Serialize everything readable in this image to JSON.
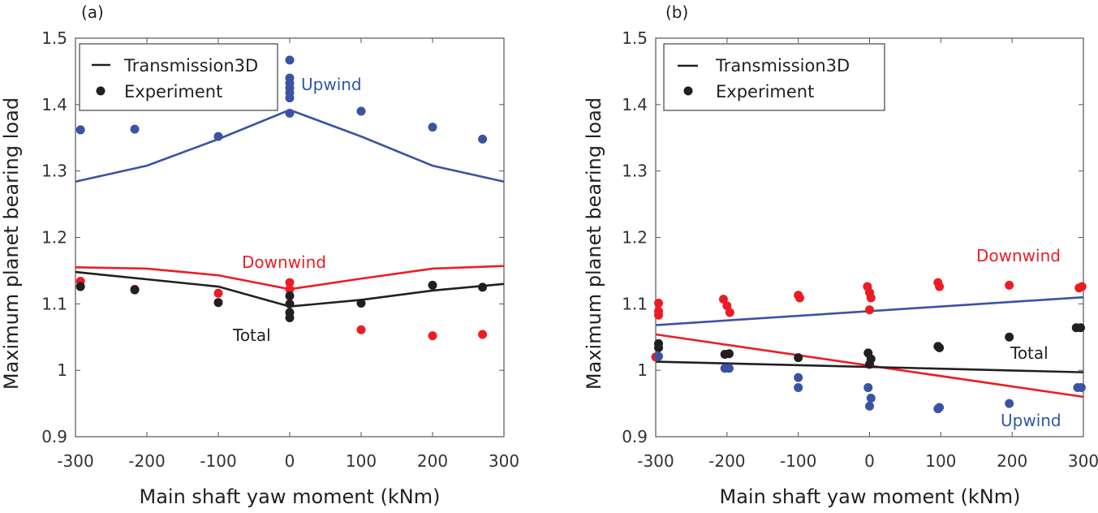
{
  "chart_data": [
    {
      "type": "line+scatter",
      "panel_label": "(a)",
      "xlabel": "Main shaft yaw moment (kNm)",
      "ylabel": "Maximum planet bearing load",
      "xlim": [
        -300,
        300
      ],
      "ylim": [
        0.9,
        1.5
      ],
      "xticks": [
        "-300",
        "-200",
        "-100",
        "0",
        "100",
        "200",
        "300"
      ],
      "yticks": [
        "0.9",
        "1",
        "1.1",
        "1.2",
        "1.3",
        "1.4",
        "1.5"
      ],
      "legend": {
        "position": "top-left",
        "entries": [
          "Transmission3D",
          "Experiment"
        ]
      },
      "annotations": [
        {
          "text": "Upwind",
          "color": "#2f56a6"
        },
        {
          "text": "Downwind",
          "color": "#ed1c24"
        },
        {
          "text": "Total",
          "color": "#231f20"
        }
      ],
      "series": [
        {
          "group": "Upwind",
          "kind": "line",
          "color": "#3a53a4",
          "x": [
            -300,
            -200,
            -100,
            0,
            100,
            200,
            300
          ],
          "y": [
            1.284,
            1.308,
            1.348,
            1.392,
            1.352,
            1.308,
            1.284
          ]
        },
        {
          "group": "Downwind",
          "kind": "line",
          "color": "#ed1c24",
          "x": [
            -300,
            -200,
            -100,
            0,
            100,
            200,
            300
          ],
          "y": [
            1.155,
            1.153,
            1.143,
            1.122,
            1.138,
            1.153,
            1.157
          ]
        },
        {
          "group": "Total",
          "kind": "line",
          "color": "#231f20",
          "x": [
            -300,
            -100,
            0,
            100,
            200,
            300
          ],
          "y": [
            1.148,
            1.126,
            1.096,
            1.106,
            1.12,
            1.13
          ]
        },
        {
          "group": "Upwind",
          "kind": "points",
          "color": "#3a53a4",
          "x": [
            -293,
            -217,
            -100,
            0,
            0,
            0,
            0,
            0,
            0,
            0,
            100,
            200,
            270
          ],
          "y": [
            1.362,
            1.363,
            1.352,
            1.467,
            1.44,
            1.432,
            1.425,
            1.418,
            1.41,
            1.387,
            1.39,
            1.366,
            1.348
          ]
        },
        {
          "group": "Downwind",
          "kind": "points",
          "color": "#ed1c24",
          "x": [
            -293,
            -217,
            -100,
            0,
            0,
            100,
            200,
            270
          ],
          "y": [
            1.134,
            1.122,
            1.116,
            1.132,
            1.122,
            1.061,
            1.052,
            1.054
          ]
        },
        {
          "group": "Total",
          "kind": "points",
          "color": "#231f20",
          "x": [
            -293,
            -217,
            -100,
            0,
            0,
            0,
            0,
            100,
            200,
            270
          ],
          "y": [
            1.126,
            1.121,
            1.102,
            1.112,
            1.1,
            1.087,
            1.079,
            1.101,
            1.128,
            1.125
          ]
        }
      ]
    },
    {
      "type": "line+scatter",
      "panel_label": "(b)",
      "xlabel": "Main shaft yaw moment (kNm)",
      "ylabel": "Maximum planet bearing load",
      "xlim": [
        -300,
        300
      ],
      "ylim": [
        0.9,
        1.5
      ],
      "xticks": [
        "-300",
        "-200",
        "-100",
        "0",
        "100",
        "200",
        "300"
      ],
      "yticks": [
        "0.9",
        "1",
        "1.1",
        "1.2",
        "1.3",
        "1.4",
        "1.5"
      ],
      "legend": {
        "position": "top-left",
        "entries": [
          "Transmission3D",
          "Experiment"
        ]
      },
      "annotations": [
        {
          "text": "Downwind",
          "color": "#ed1c24"
        },
        {
          "text": "Total",
          "color": "#231f20"
        },
        {
          "text": "Upwind",
          "color": "#2f56a6"
        }
      ],
      "series": [
        {
          "kind": "line",
          "color": "#3a53a4",
          "x": [
            -300,
            300
          ],
          "y": [
            1.068,
            1.11
          ]
        },
        {
          "kind": "line",
          "color": "#ed1c24",
          "x": [
            -300,
            300
          ],
          "y": [
            1.054,
            0.96
          ]
        },
        {
          "kind": "line",
          "color": "#231f20",
          "x": [
            -300,
            300
          ],
          "y": [
            1.013,
            0.997
          ]
        },
        {
          "group": "Downwind",
          "kind": "points",
          "color": "#ed1c24",
          "x": [
            -296,
            -296,
            -296,
            -300,
            -205,
            -200,
            -196,
            -100,
            -98,
            -3,
            0,
            2,
            0,
            96,
            98,
            196,
            294,
            298
          ],
          "y": [
            1.101,
            1.089,
            1.083,
            1.02,
            1.107,
            1.097,
            1.087,
            1.113,
            1.109,
            1.126,
            1.117,
            1.109,
            1.091,
            1.132,
            1.126,
            1.128,
            1.124,
            1.126
          ]
        },
        {
          "group": "Total",
          "kind": "points",
          "color": "#231f20",
          "x": [
            -296,
            -296,
            -203,
            -197,
            -100,
            -2,
            2,
            0,
            96,
            98,
            196,
            290,
            296
          ],
          "y": [
            1.04,
            1.034,
            1.024,
            1.025,
            1.019,
            1.026,
            1.017,
            1.009,
            1.036,
            1.034,
            1.05,
            1.064,
            1.064
          ]
        },
        {
          "group": "Upwind",
          "kind": "points",
          "color": "#3a53a4",
          "x": [
            -296,
            -203,
            -197,
            -100,
            -100,
            -2,
            2,
            0,
            96,
            98,
            196,
            292,
            297
          ],
          "y": [
            1.021,
            1.003,
            1.003,
            0.989,
            0.974,
            0.974,
            0.958,
            0.946,
            0.942,
            0.944,
            0.95,
            0.974,
            0.974
          ]
        }
      ]
    }
  ]
}
